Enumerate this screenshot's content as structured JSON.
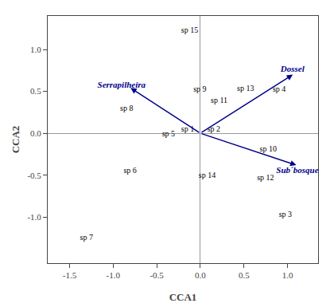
{
  "chart_data": {
    "type": "biplot",
    "xlabel": "CCA1",
    "ylabel": "CCA2",
    "xlim": [
      -1.75,
      1.35
    ],
    "ylim": [
      -1.55,
      1.4
    ],
    "xticks": [
      -1.5,
      {
        "value": -1.0,
        "label": "-1.0"
      },
      -0.5,
      {
        "value": 0.0,
        "label": "0.0"
      },
      0.5,
      {
        "value": 1.0,
        "label": "1.0"
      }
    ],
    "yticks": [
      {
        "value": -1.0,
        "label": "-1.0"
      },
      -0.5,
      {
        "value": 0.0,
        "label": "0.0"
      },
      0.5,
      {
        "value": 1.0,
        "label": "1.0"
      }
    ],
    "grid": false,
    "species": {
      "color": "#000000",
      "points": [
        {
          "label": "sp 1",
          "x": -0.22,
          "y": 0.0
        },
        {
          "label": "sp 2",
          "x": 0.08,
          "y": 0.0
        },
        {
          "label": "sp 3",
          "x": 0.9,
          "y": -1.02
        },
        {
          "label": "sp 4",
          "x": 0.83,
          "y": 0.47
        },
        {
          "label": "sp 5",
          "x": -0.44,
          "y": -0.06
        },
        {
          "label": "sp 6",
          "x": -0.88,
          "y": -0.5
        },
        {
          "label": "sp 7",
          "x": -1.38,
          "y": -1.3
        },
        {
          "label": "sp 8",
          "x": -0.92,
          "y": 0.24
        },
        {
          "label": "sp 9",
          "x": -0.08,
          "y": 0.47
        },
        {
          "label": "sp 10",
          "x": 0.68,
          "y": -0.24
        },
        {
          "label": "sp 11",
          "x": 0.12,
          "y": 0.34
        },
        {
          "label": "sp 12",
          "x": 0.65,
          "y": -0.58
        },
        {
          "label": "sp 13",
          "x": 0.42,
          "y": 0.48
        },
        {
          "label": "sp 14",
          "x": -0.02,
          "y": -0.56
        },
        {
          "label": "sp 15",
          "x": -0.22,
          "y": 1.18
        }
      ]
    },
    "arrows": {
      "color": "#00008B",
      "points": [
        {
          "label": "Serrapilheira",
          "x": -0.8,
          "y": 0.54,
          "label_x": -1.18,
          "label_y": 0.57
        },
        {
          "label": "Dossel",
          "x": 1.06,
          "y": 0.7,
          "label_x": 0.92,
          "label_y": 0.76
        },
        {
          "label": "Sub´bosque",
          "x": 1.1,
          "y": -0.38,
          "label_x": 0.87,
          "label_y": -0.45
        }
      ]
    }
  }
}
